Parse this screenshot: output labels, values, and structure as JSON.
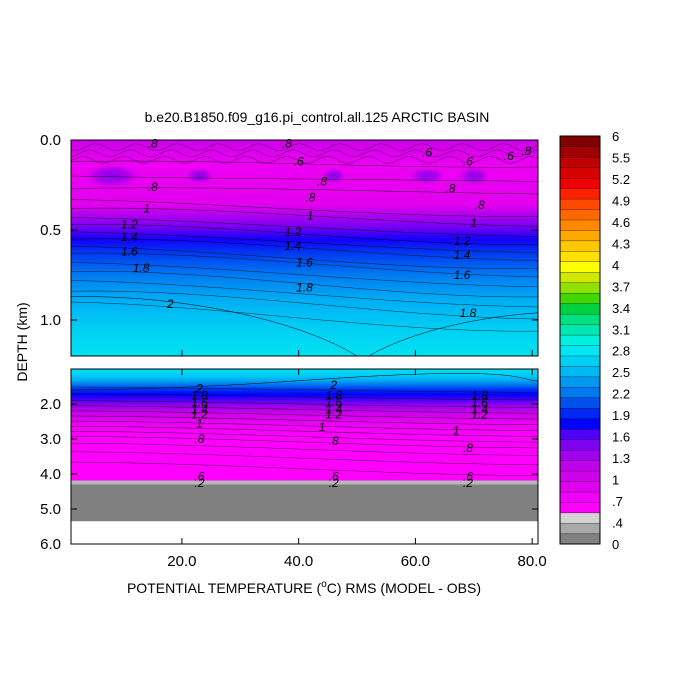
{
  "chart_data": {
    "type": "heatmap",
    "title": "b.e20.B1850.f09_g16.pi_control.all.125 ARCTIC BASIN",
    "xlabel_pre": "POTENTIAL TEMPERATURE (",
    "xlabel_sup": "o",
    "xlabel_post": "C) RMS (MODEL - OBS)",
    "ylabel": "DEPTH (km)",
    "xlim": [
      1,
      81
    ],
    "x_ticks": [
      {
        "v": 20,
        "label": "20.0"
      },
      {
        "v": 40,
        "label": "40.0"
      },
      {
        "v": 60,
        "label": "60.0"
      },
      {
        "v": 80,
        "label": "80.0"
      }
    ],
    "upper_panel": {
      "ylim": [
        0.0,
        1.2
      ],
      "y_ticks": [
        {
          "v": 0.0,
          "label": "0.0"
        },
        {
          "v": 0.5,
          "label": "0.5"
        },
        {
          "v": 1.0,
          "label": "1.0"
        }
      ]
    },
    "lower_panel": {
      "ylim": [
        1.0,
        6.0
      ],
      "y_ticks": [
        {
          "v": 2.0,
          "label": "2.0"
        },
        {
          "v": 3.0,
          "label": "3.0"
        },
        {
          "v": 4.0,
          "label": "4.0"
        },
        {
          "v": 5.0,
          "label": "5.0"
        },
        {
          "v": 6.0,
          "label": "6.0"
        }
      ],
      "bottom_depth_km": 4.3,
      "data_bottom_km": 5.35
    },
    "upper_contour_labels": [
      {
        "x": 15,
        "y": 0.02,
        "text": ".8"
      },
      {
        "x": 38,
        "y": 0.02,
        "text": ".8"
      },
      {
        "x": 40,
        "y": 0.12,
        "text": ".6"
      },
      {
        "x": 62,
        "y": 0.07,
        "text": ".6"
      },
      {
        "x": 69,
        "y": 0.12,
        "text": ".6"
      },
      {
        "x": 76,
        "y": 0.09,
        "text": ".6"
      },
      {
        "x": 79,
        "y": 0.06,
        "text": ".8"
      },
      {
        "x": 15,
        "y": 0.26,
        "text": ".8"
      },
      {
        "x": 44,
        "y": 0.23,
        "text": ".8"
      },
      {
        "x": 42,
        "y": 0.32,
        "text": ".8"
      },
      {
        "x": 66,
        "y": 0.27,
        "text": ".8"
      },
      {
        "x": 71,
        "y": 0.36,
        "text": ".8"
      },
      {
        "x": 14,
        "y": 0.38,
        "text": "1"
      },
      {
        "x": 42,
        "y": 0.42,
        "text": "1"
      },
      {
        "x": 70,
        "y": 0.46,
        "text": "1"
      },
      {
        "x": 11,
        "y": 0.47,
        "text": "1.2"
      },
      {
        "x": 39,
        "y": 0.51,
        "text": "1.2"
      },
      {
        "x": 68,
        "y": 0.56,
        "text": "1.2"
      },
      {
        "x": 11,
        "y": 0.54,
        "text": "1.4"
      },
      {
        "x": 39,
        "y": 0.59,
        "text": "1.4"
      },
      {
        "x": 68,
        "y": 0.64,
        "text": "1.4"
      },
      {
        "x": 11,
        "y": 0.62,
        "text": "1.6"
      },
      {
        "x": 41,
        "y": 0.68,
        "text": "1.6"
      },
      {
        "x": 68,
        "y": 0.75,
        "text": "1.6"
      },
      {
        "x": 13,
        "y": 0.71,
        "text": "1.8"
      },
      {
        "x": 41,
        "y": 0.82,
        "text": "1.8"
      },
      {
        "x": 69,
        "y": 0.96,
        "text": "1.8"
      },
      {
        "x": 18,
        "y": 0.91,
        "text": "2"
      }
    ],
    "lower_contour_labels": [
      {
        "x": 23,
        "y": 1.55,
        "text": "2"
      },
      {
        "x": 46,
        "y": 1.45,
        "text": "2"
      },
      {
        "x": 23,
        "y": 1.75,
        "text": "1.8"
      },
      {
        "x": 46,
        "y": 1.75,
        "text": "1.8"
      },
      {
        "x": 71,
        "y": 1.75,
        "text": "1.8"
      },
      {
        "x": 23,
        "y": 1.95,
        "text": "1.6"
      },
      {
        "x": 46,
        "y": 1.95,
        "text": "1.6"
      },
      {
        "x": 71,
        "y": 1.95,
        "text": "1.6"
      },
      {
        "x": 23,
        "y": 2.15,
        "text": "1.4"
      },
      {
        "x": 46,
        "y": 2.15,
        "text": "1.4"
      },
      {
        "x": 71,
        "y": 2.15,
        "text": "1.4"
      },
      {
        "x": 23,
        "y": 2.3,
        "text": "1.2"
      },
      {
        "x": 46,
        "y": 2.3,
        "text": "1.2"
      },
      {
        "x": 71,
        "y": 2.3,
        "text": "1.2"
      },
      {
        "x": 23,
        "y": 2.55,
        "text": "1"
      },
      {
        "x": 44,
        "y": 2.65,
        "text": "1"
      },
      {
        "x": 67,
        "y": 2.75,
        "text": "1"
      },
      {
        "x": 23,
        "y": 3.0,
        "text": ".8"
      },
      {
        "x": 46,
        "y": 3.05,
        "text": ".8"
      },
      {
        "x": 69,
        "y": 3.25,
        "text": ".8"
      },
      {
        "x": 23,
        "y": 4.07,
        "text": ".6"
      },
      {
        "x": 46,
        "y": 4.07,
        "text": ".6"
      },
      {
        "x": 69,
        "y": 4.07,
        "text": ".6"
      },
      {
        "x": 23,
        "y": 4.25,
        "text": ".2"
      },
      {
        "x": 46,
        "y": 4.25,
        "text": ".2"
      },
      {
        "x": 69,
        "y": 4.25,
        "text": ".2"
      }
    ],
    "colorbar": {
      "labels": [
        "0",
        ".4",
        ".7",
        "1",
        "1.3",
        "1.6",
        "1.9",
        "2.2",
        "2.5",
        "2.8",
        "3.1",
        "3.4",
        "3.7",
        "4",
        "4.3",
        "4.6",
        "4.9",
        "5.2",
        "5.5",
        "6"
      ],
      "colors": [
        "#808080",
        "#a9a9a9",
        "#d3d3d3",
        "#ff00ff",
        "#f000f8",
        "#e000f0",
        "#d000ea",
        "#bf00ea",
        "#a000ee",
        "#8000f0",
        "#5000f8",
        "#0000ff",
        "#0028f4",
        "#0050ee",
        "#0078f0",
        "#0098f2",
        "#00b8f4",
        "#00d0f4",
        "#00e6f2",
        "#00f0e0",
        "#00e8b0",
        "#00e080",
        "#00d040",
        "#40d800",
        "#90e000",
        "#d0e800",
        "#ffff00",
        "#ffe000",
        "#ffc800",
        "#ffa800",
        "#ff8800",
        "#ff6800",
        "#ff4800",
        "#ff2000",
        "#f00000",
        "#d80000",
        "#c00000",
        "#a00000",
        "#800000"
      ]
    }
  }
}
